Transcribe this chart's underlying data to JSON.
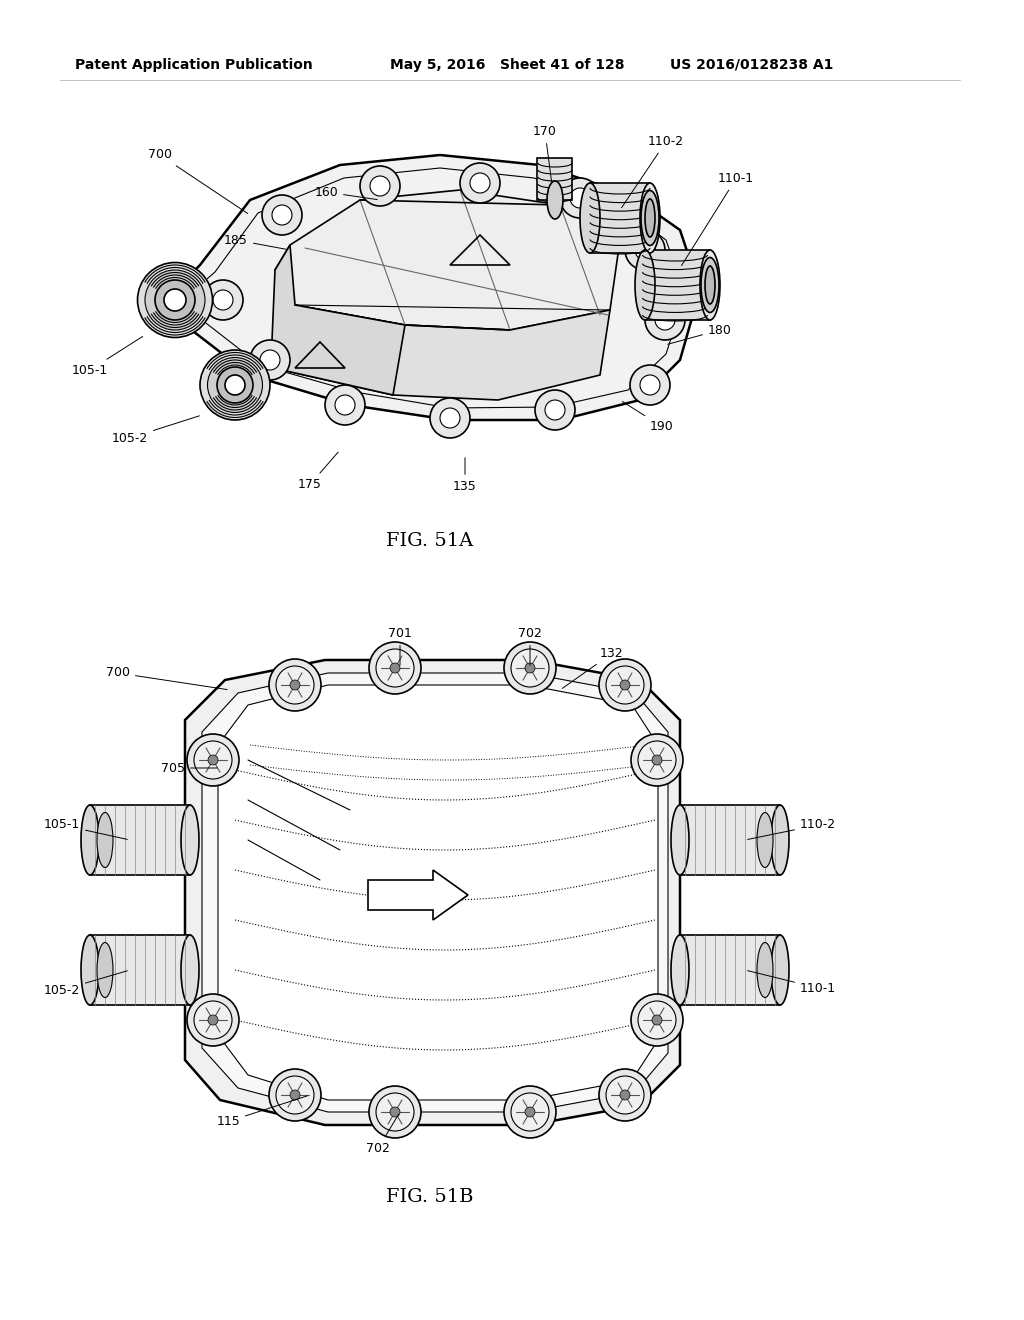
{
  "background_color": "#ffffff",
  "header_left": "Patent Application Publication",
  "header_mid": "May 5, 2016   Sheet 41 of 128",
  "header_right": "US 2016/0128238 A1",
  "fig_label_A": "FIG. 51A",
  "fig_label_B": "FIG. 51B",
  "header_font_size": 10,
  "label_font_size": 9,
  "fig_label_font_size": 14,
  "line_color": "#000000"
}
